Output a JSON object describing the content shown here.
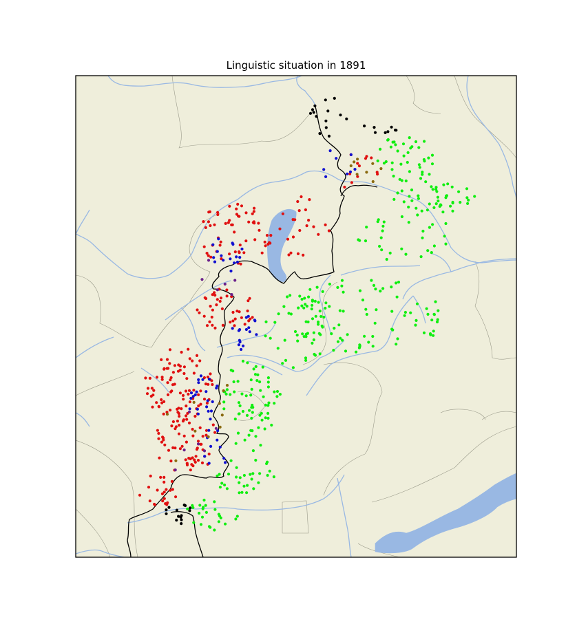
{
  "title": "Linguistic situation in 1891",
  "colors": {
    "land": "#efeedb",
    "water": "#99b8e3",
    "river": "#99b8e3",
    "language_border": "#000000",
    "district_border": "#9a9a8a",
    "frame": "#000000",
    "red": "#e01010",
    "green": "#10ee10",
    "blue": "#1010d0",
    "black": "#000000",
    "olive": "#8a6a10",
    "purple": "#6a208a"
  }
}
